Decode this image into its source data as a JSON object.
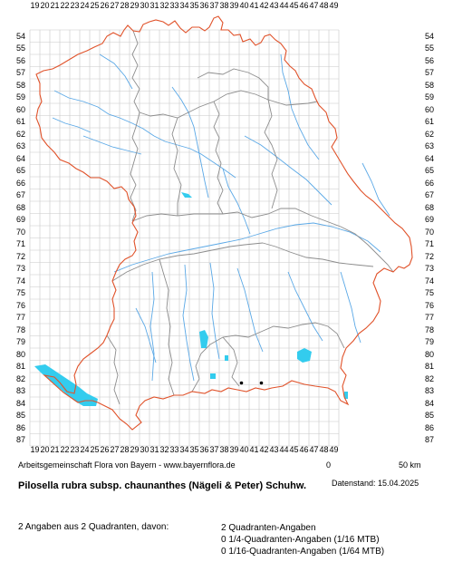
{
  "map": {
    "x_axis_labels": [
      "19",
      "20",
      "21",
      "22",
      "23",
      "24",
      "25",
      "26",
      "27",
      "28",
      "29",
      "30",
      "31",
      "32",
      "33",
      "34",
      "35",
      "36",
      "37",
      "38",
      "39",
      "40",
      "41",
      "42",
      "43",
      "44",
      "45",
      "46",
      "47",
      "48",
      "49"
    ],
    "y_axis_labels": [
      "54",
      "55",
      "56",
      "57",
      "58",
      "59",
      "60",
      "61",
      "62",
      "63",
      "64",
      "65",
      "66",
      "67",
      "68",
      "69",
      "70",
      "71",
      "72",
      "73",
      "74",
      "75",
      "76",
      "77",
      "78",
      "79",
      "80",
      "81",
      "82",
      "83",
      "84",
      "85",
      "86",
      "87"
    ],
    "colors": {
      "grid": "#c8c8c8",
      "state_border": "#e0522a",
      "district_border": "#8c8c8c",
      "rivers": "#5aa8e6",
      "lakes": "#33ccee",
      "occurrence_dot": "#000000"
    },
    "scale_bar": {
      "start": "0",
      "end": "50 km"
    }
  },
  "footer": {
    "credit": "Arbeitsgemeinschaft Flora von Bayern - www.bayernflora.de",
    "date": "Datenstand: 15.04.2025",
    "species": "Pilosella rubra subsp. chaunanthes (Nägeli & Peter) Schuhw.",
    "summary": "2 Angaben aus 2 Quadranten, davon:",
    "stats": [
      "2 Quadranten-Angaben",
      "0 1/4-Quadranten-Angaben (1/16 MTB)",
      "0 1/16-Quadranten-Angaben (1/64 MTB)"
    ]
  }
}
